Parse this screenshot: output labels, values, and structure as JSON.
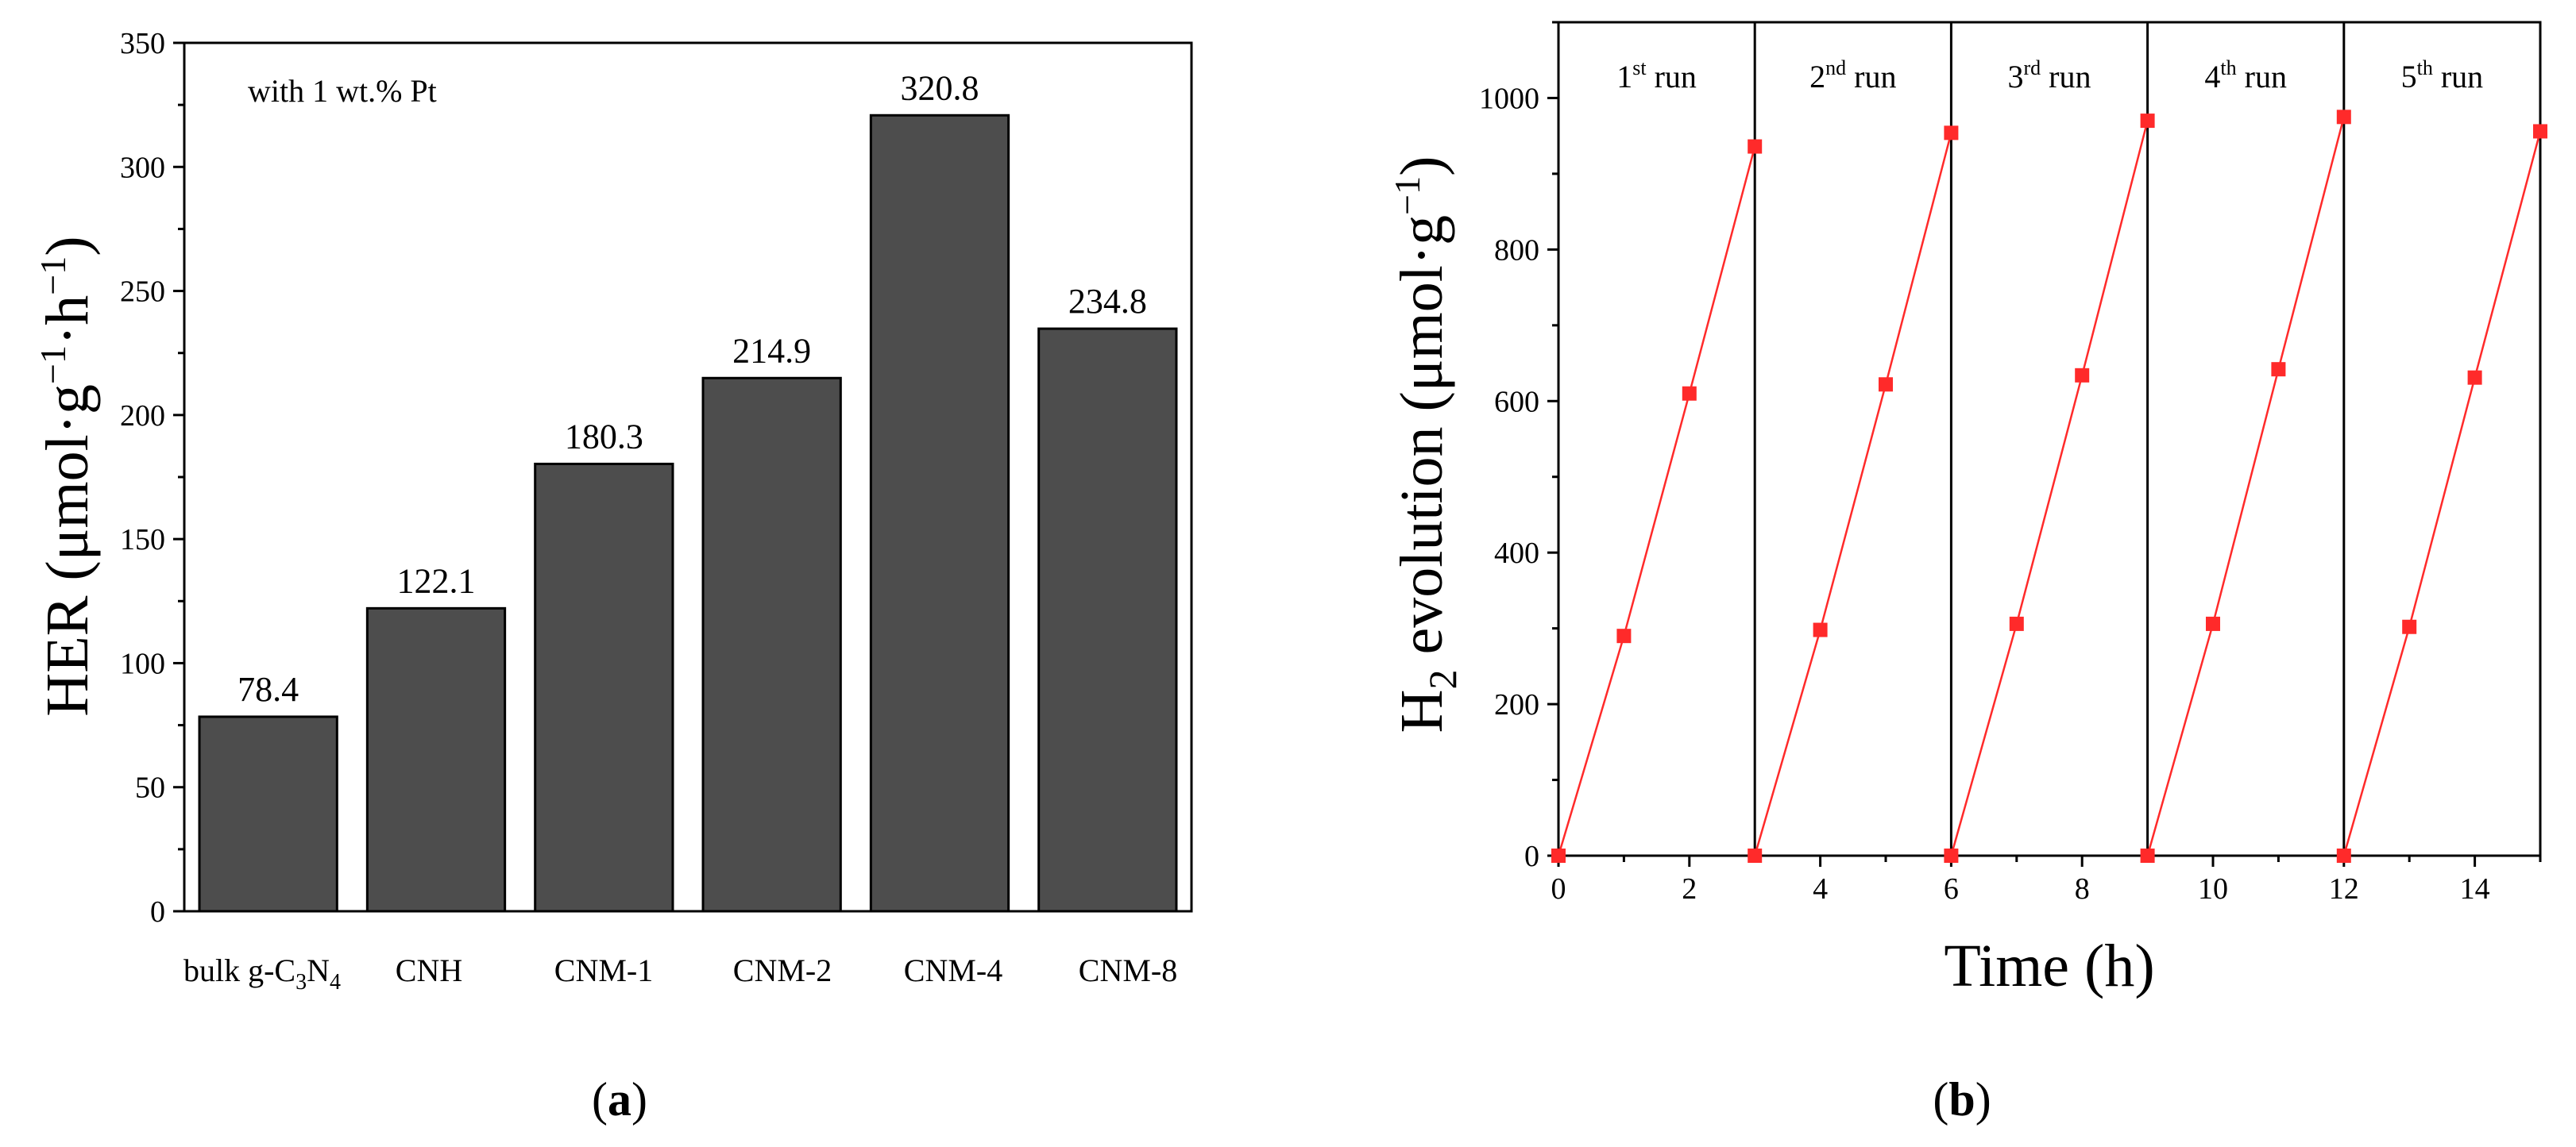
{
  "chart_data": [
    {
      "type": "bar",
      "panel_label": "a",
      "annotation": "with 1 wt.% Pt",
      "ylabel": {
        "prefix": "HER (μmol·g",
        "sup1": "−1",
        "mid": "·h",
        "sup2": "−1",
        "suffix": ")"
      },
      "categories": [
        {
          "label": "bulk g-C3N4",
          "parts": {
            "a": "bulk g-C",
            "s1": "3",
            "b": "N",
            "s2": "4"
          }
        },
        {
          "label": "CNH"
        },
        {
          "label": "CNM-1"
        },
        {
          "label": "CNM-2"
        },
        {
          "label": "CNM-4"
        },
        {
          "label": "CNM-8"
        }
      ],
      "values": [
        78.4,
        122.1,
        180.3,
        214.9,
        320.8,
        234.8
      ],
      "value_labels": [
        "78.4",
        "122.1",
        "180.3",
        "214.9",
        "320.8",
        "234.8"
      ],
      "ylim": [
        0,
        350
      ],
      "yticks": [
        0,
        50,
        100,
        150,
        200,
        250,
        300,
        350
      ],
      "bar_color": "#4d4d4d"
    },
    {
      "type": "line",
      "panel_label": "b",
      "xlabel": "Time (h)",
      "ylabel": {
        "prefix": "H",
        "sub": "2",
        "mid": " evolution (μmol·g",
        "sup": "−1",
        "suffix": ")"
      },
      "xlim": [
        0,
        15
      ],
      "ylim": [
        0,
        1100
      ],
      "xticks": [
        0,
        2,
        4,
        6,
        8,
        10,
        12,
        14
      ],
      "yticks": [
        0,
        200,
        400,
        600,
        800,
        1000
      ],
      "separators": [
        3,
        6,
        9,
        12
      ],
      "run_labels": [
        {
          "num": "1",
          "sup": "st",
          "text": " run",
          "center": 1.5
        },
        {
          "num": "2",
          "sup": "nd",
          "text": " run",
          "center": 4.5
        },
        {
          "num": "3",
          "sup": "rd",
          "text": " run",
          "center": 7.5
        },
        {
          "num": "4",
          "sup": "th",
          "text": " run",
          "center": 10.5
        },
        {
          "num": "5",
          "sup": "th",
          "text": " run",
          "center": 13.5
        }
      ],
      "series_color": "#ff2a2a",
      "runs": [
        {
          "x": [
            0,
            1,
            2,
            3
          ],
          "y": [
            0,
            290,
            610,
            936
          ]
        },
        {
          "x": [
            3,
            4,
            5,
            6
          ],
          "y": [
            0,
            298,
            622,
            954
          ]
        },
        {
          "x": [
            6,
            7,
            8,
            9
          ],
          "y": [
            0,
            306,
            634,
            970
          ]
        },
        {
          "x": [
            9,
            10,
            11,
            12
          ],
          "y": [
            0,
            306,
            642,
            975
          ]
        },
        {
          "x": [
            12,
            13,
            14,
            15
          ],
          "y": [
            0,
            302,
            631,
            956
          ]
        }
      ]
    }
  ]
}
